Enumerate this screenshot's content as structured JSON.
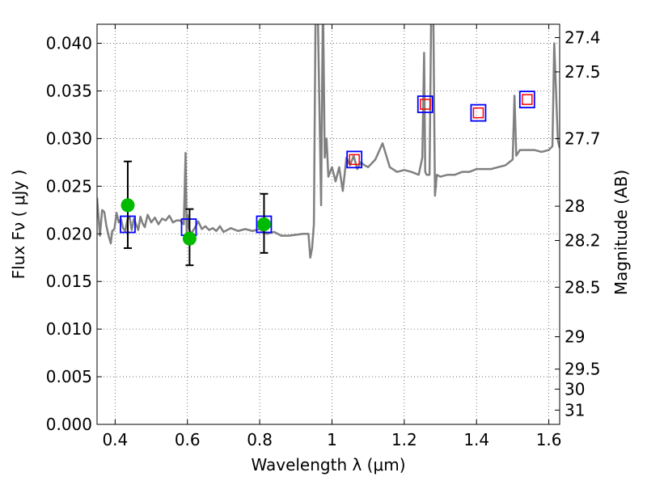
{
  "chart_data": {
    "type": "line",
    "title": "",
    "xlabel": "Wavelength  λ (μm)",
    "ylabel": "Flux  Fν  ( μJy )",
    "y2label": "Magnitude (AB)",
    "xlim": [
      0.35,
      1.63
    ],
    "ylim": [
      0.0,
      0.042
    ],
    "grid": true,
    "x_ticks": [
      0.4,
      0.6,
      0.8,
      1.0,
      1.2,
      1.4,
      1.6
    ],
    "x_tick_labels": [
      "0.4",
      "0.6",
      "0.8",
      "1",
      "1.2",
      "1.4",
      "1.6"
    ],
    "y_ticks": [
      0.0,
      0.005,
      0.01,
      0.015,
      0.02,
      0.025,
      0.03,
      0.035,
      0.04
    ],
    "y_tick_labels": [
      "0.000",
      "0.005",
      "0.010",
      "0.015",
      "0.020",
      "0.025",
      "0.030",
      "0.035",
      "0.040"
    ],
    "mag_ticks": [
      {
        "label": "27.4",
        "flux": 0.0406
      },
      {
        "label": "27.5",
        "flux": 0.037
      },
      {
        "label": "27.7",
        "flux": 0.03
      },
      {
        "label": "28",
        "flux": 0.0229
      },
      {
        "label": "28.2",
        "flux": 0.0193
      },
      {
        "label": "28.5",
        "flux": 0.0144
      },
      {
        "label": "29",
        "flux": 0.0092
      },
      {
        "label": "29.5",
        "flux": 0.0058
      },
      {
        "label": "30",
        "flux": 0.0037
      },
      {
        "label": "31",
        "flux": 0.0015
      }
    ],
    "series": [
      {
        "name": "SED model spectrum",
        "color": "#808080",
        "x": [
          0.35,
          0.358,
          0.364,
          0.37,
          0.376,
          0.382,
          0.388,
          0.392,
          0.398,
          0.404,
          0.41,
          0.416,
          0.422,
          0.428,
          0.434,
          0.44,
          0.446,
          0.452,
          0.458,
          0.464,
          0.47,
          0.476,
          0.482,
          0.49,
          0.5,
          0.51,
          0.52,
          0.53,
          0.54,
          0.55,
          0.56,
          0.57,
          0.58,
          0.59,
          0.595,
          0.598,
          0.6,
          0.602,
          0.605,
          0.61,
          0.62,
          0.63,
          0.64,
          0.65,
          0.66,
          0.67,
          0.68,
          0.69,
          0.7,
          0.72,
          0.74,
          0.76,
          0.78,
          0.8,
          0.82,
          0.84,
          0.86,
          0.88,
          0.9,
          0.92,
          0.935,
          0.94,
          0.945,
          0.95,
          0.955,
          0.96,
          0.97,
          0.975,
          0.98,
          0.985,
          0.99,
          1.0,
          1.01,
          1.02,
          1.03,
          1.04,
          1.05,
          1.06,
          1.065,
          1.07,
          1.08,
          1.09,
          1.1,
          1.12,
          1.14,
          1.16,
          1.18,
          1.2,
          1.22,
          1.24,
          1.25,
          1.255,
          1.258,
          1.262,
          1.27,
          1.275,
          1.28,
          1.285,
          1.29,
          1.3,
          1.32,
          1.34,
          1.36,
          1.38,
          1.4,
          1.42,
          1.44,
          1.46,
          1.48,
          1.5,
          1.505,
          1.51,
          1.515,
          1.52,
          1.54,
          1.56,
          1.58,
          1.6,
          1.61,
          1.615,
          1.62,
          1.625,
          1.63
        ],
        "y": [
          0.0238,
          0.0198,
          0.0225,
          0.0223,
          0.0208,
          0.0198,
          0.019,
          0.0203,
          0.0205,
          0.0222,
          0.0212,
          0.0216,
          0.0206,
          0.0203,
          0.0215,
          0.0218,
          0.0204,
          0.0216,
          0.021,
          0.0204,
          0.0218,
          0.0211,
          0.0207,
          0.022,
          0.0212,
          0.0217,
          0.021,
          0.0216,
          0.0214,
          0.0219,
          0.0212,
          0.0214,
          0.0214,
          0.021,
          0.0285,
          0.02,
          0.022,
          0.021,
          0.0205,
          0.02,
          0.0206,
          0.0213,
          0.0205,
          0.0208,
          0.0204,
          0.0206,
          0.0203,
          0.0208,
          0.0202,
          0.0206,
          0.0203,
          0.0205,
          0.0203,
          0.0205,
          0.02,
          0.0202,
          0.0198,
          0.0198,
          0.0199,
          0.02,
          0.02,
          0.0175,
          0.0185,
          0.021,
          0.045,
          0.045,
          0.023,
          0.045,
          0.028,
          0.03,
          0.026,
          0.027,
          0.0255,
          0.027,
          0.0245,
          0.028,
          0.0272,
          0.0282,
          0.0275,
          0.0268,
          0.0275,
          0.0272,
          0.027,
          0.0278,
          0.0295,
          0.027,
          0.0265,
          0.0267,
          0.0265,
          0.0262,
          0.028,
          0.039,
          0.0265,
          0.0262,
          0.0262,
          0.045,
          0.045,
          0.024,
          0.0262,
          0.026,
          0.0262,
          0.0262,
          0.0265,
          0.0265,
          0.0268,
          0.0268,
          0.0268,
          0.027,
          0.0272,
          0.0278,
          0.0345,
          0.0282,
          0.0285,
          0.0288,
          0.0288,
          0.0288,
          0.0286,
          0.0288,
          0.0292,
          0.04,
          0.035,
          0.0298,
          0.029
        ],
        "style": "line"
      },
      {
        "name": "Model band fluxes (blue squares)",
        "color": "#0000ff",
        "x": [
          0.435,
          0.604,
          0.812,
          1.062,
          1.258,
          1.405,
          1.54
        ],
        "y": [
          0.021,
          0.0207,
          0.021,
          0.0278,
          0.0336,
          0.0327,
          0.0341
        ],
        "style": "open-square"
      },
      {
        "name": "Upper limits (red squares)",
        "color": "#ff0000",
        "x": [
          1.062,
          1.258,
          1.405,
          1.54
        ],
        "y": [
          0.0278,
          0.0336,
          0.0327,
          0.0341
        ],
        "style": "open-square-small"
      },
      {
        "name": "Observed photometry (green circles)",
        "color": "#00bb00",
        "x": [
          0.435,
          0.606,
          0.812
        ],
        "y": [
          0.023,
          0.0195,
          0.021
        ],
        "yerr_low": [
          0.0185,
          0.0167,
          0.018
        ],
        "yerr_high": [
          0.0276,
          0.0226,
          0.0242
        ],
        "style": "filled-circle"
      }
    ]
  }
}
